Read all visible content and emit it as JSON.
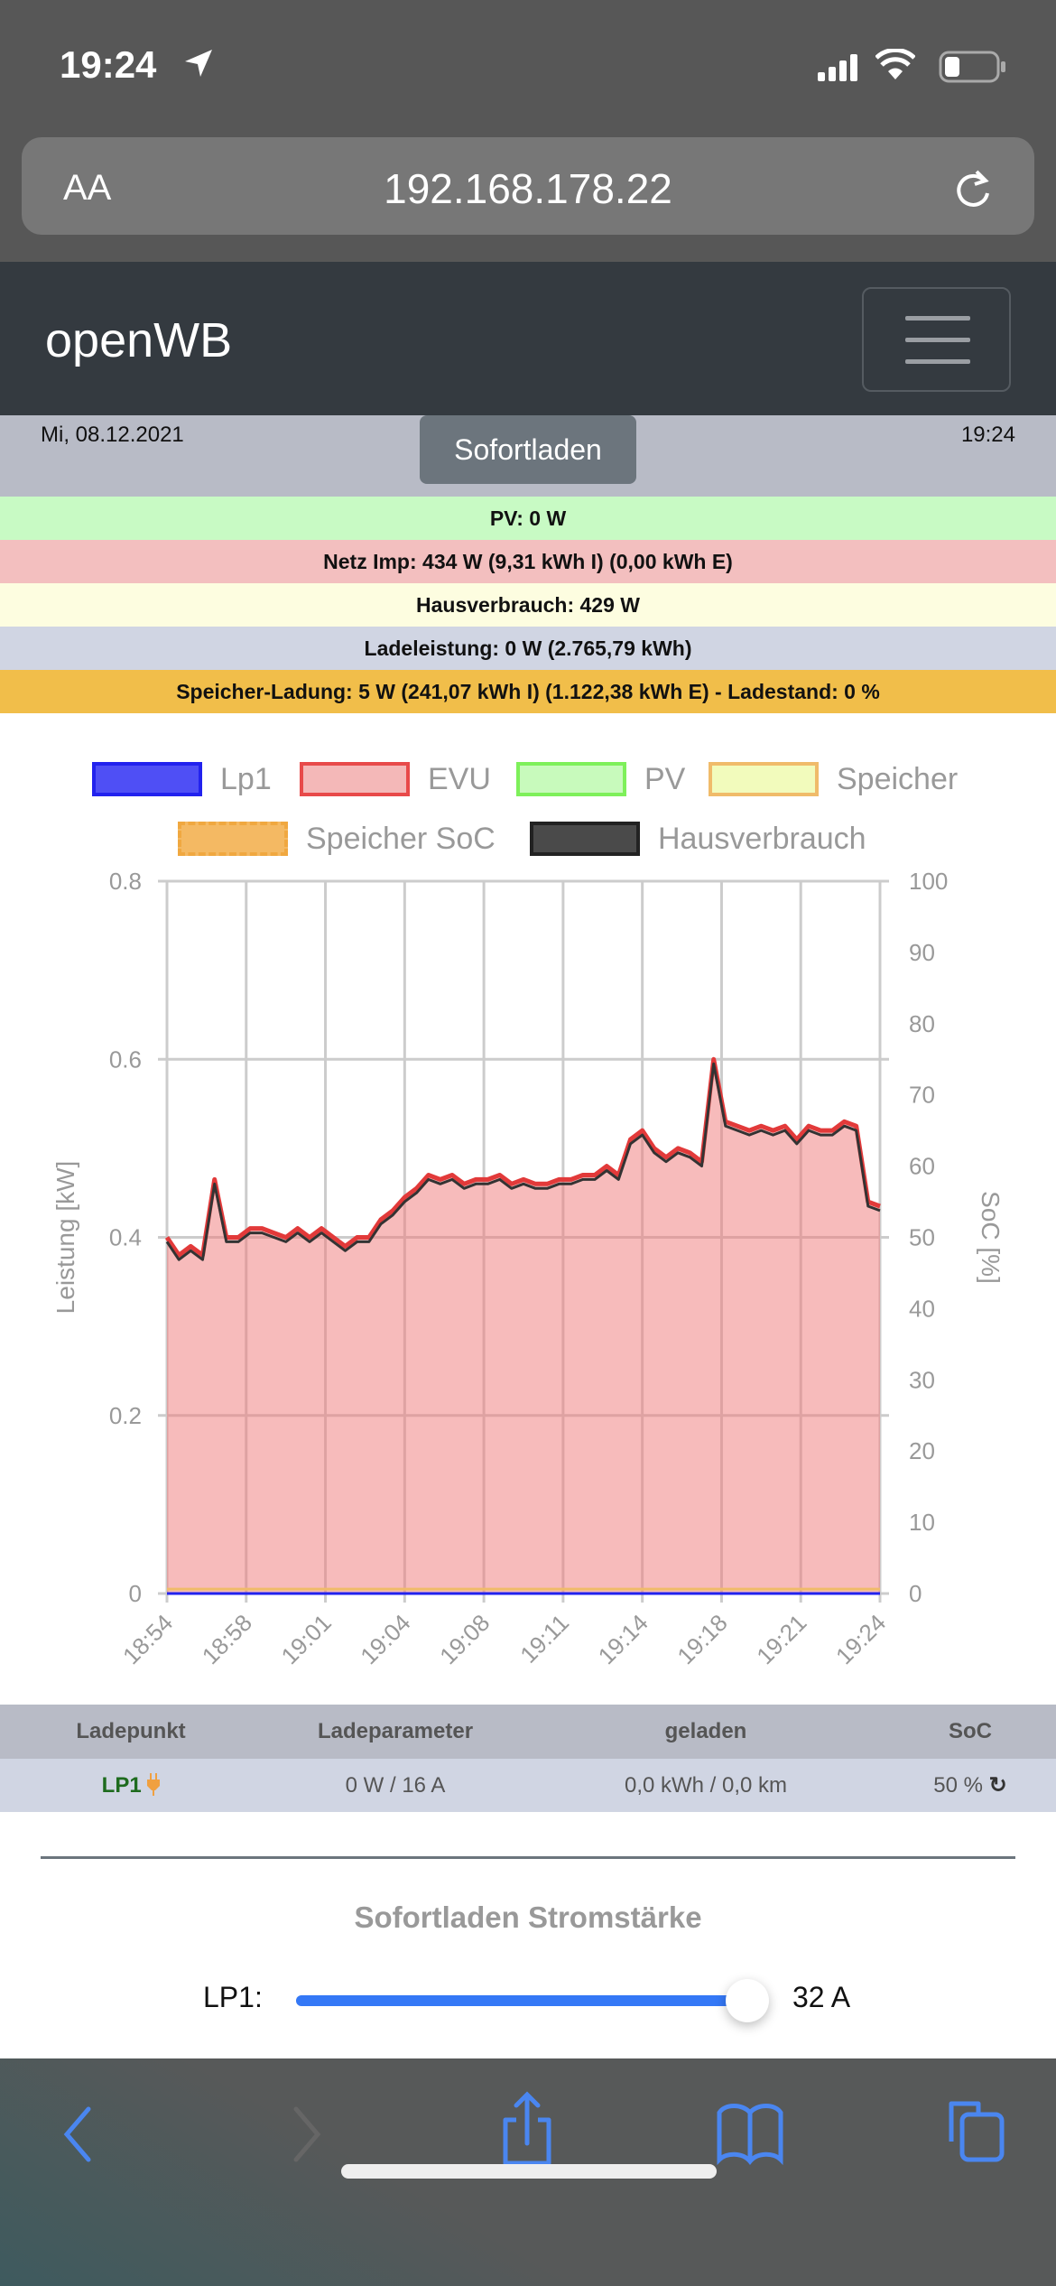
{
  "status_bar": {
    "time": "19:24",
    "icons": [
      "location-arrow-icon",
      "signal-icon",
      "wifi-icon",
      "battery-icon"
    ]
  },
  "browser": {
    "text_size_label": "AA",
    "url": "192.168.178.22",
    "reload_icon": "reload-icon",
    "toolbar_icons": [
      "back-icon",
      "forward-icon",
      "share-icon",
      "bookmarks-icon",
      "tabs-icon"
    ]
  },
  "navbar": {
    "brand": "openWB",
    "menu_icon": "hamburger-icon"
  },
  "header": {
    "date": "Mi, 08.12.2021",
    "mode_button": "Sofortladen",
    "time": "19:24"
  },
  "info": [
    {
      "text": "PV: 0 W",
      "color": "#c8fac4"
    },
    {
      "text": "Netz Imp: 434 W (9,31 kWh I) (0,00 kWh E)",
      "color": "#f3bfbf"
    },
    {
      "text": "Hausverbrauch: 429 W",
      "color": "#fdfde0"
    },
    {
      "text": "Ladeleistung: 0 W (2.765,79 kWh)",
      "color": "#d0d5e3"
    },
    {
      "text": "Speicher-Ladung: 5 W (241,07 kWh I) (1.122,38 kWh E) - Ladestand: 0 %",
      "color": "#f1be4a"
    }
  ],
  "chart_data": {
    "type": "area",
    "legend": [
      {
        "name": "Lp1",
        "fill": "#4f4ff5",
        "stroke": "#2222ee"
      },
      {
        "name": "EVU",
        "fill": "#f4b8b8",
        "stroke": "#e84a4a"
      },
      {
        "name": "PV",
        "fill": "#c8fabc",
        "stroke": "#7ef05a"
      },
      {
        "name": "Speicher",
        "fill": "#f2fbbc",
        "stroke": "#f0bb6a"
      },
      {
        "name": "Speicher SoC",
        "fill": "#f4b963",
        "stroke": "#f0a840",
        "dashed": true
      },
      {
        "name": "Hausverbrauch",
        "fill": "#4a4a4a",
        "stroke": "#222222"
      }
    ],
    "legend_position": "top",
    "ylabel": "Leistung [kW]",
    "ylim": [
      0,
      0.8
    ],
    "yticks": [
      "0",
      "0.2",
      "0.4",
      "0.6",
      "0.8"
    ],
    "y2label": "SoC [%]",
    "y2lim": [
      0,
      100
    ],
    "y2ticks": [
      "0",
      "10",
      "20",
      "30",
      "40",
      "50",
      "60",
      "70",
      "80",
      "90",
      "100"
    ],
    "xticks": [
      "18:54",
      "18:58",
      "19:01",
      "19:04",
      "19:08",
      "19:11",
      "19:14",
      "19:18",
      "19:21",
      "19:24"
    ],
    "xlim": [
      "18:54",
      "19:24"
    ],
    "grid": true,
    "minutes_after_1854": [
      0,
      0.5,
      1,
      1.5,
      2,
      2.5,
      3,
      3.5,
      4,
      4.5,
      5,
      5.5,
      6,
      6.5,
      7,
      7.5,
      8,
      8.5,
      9,
      9.5,
      10,
      10.5,
      11,
      11.5,
      12,
      12.5,
      13,
      13.5,
      14,
      14.5,
      15,
      15.5,
      16,
      16.5,
      17,
      17.5,
      18,
      18.5,
      19,
      19.5,
      20,
      20.5,
      21,
      21.5,
      22,
      22.5,
      23,
      23.5,
      24,
      24.5,
      25,
      25.5,
      26,
      26.5,
      27,
      27.5,
      28,
      28.5,
      29,
      29.5,
      30
    ],
    "series": [
      {
        "name": "EVU",
        "values": [
          0.4,
          0.38,
          0.39,
          0.38,
          0.465,
          0.4,
          0.4,
          0.41,
          0.41,
          0.405,
          0.4,
          0.41,
          0.4,
          0.41,
          0.4,
          0.39,
          0.4,
          0.4,
          0.42,
          0.43,
          0.445,
          0.455,
          0.47,
          0.465,
          0.47,
          0.46,
          0.465,
          0.465,
          0.47,
          0.46,
          0.465,
          0.46,
          0.46,
          0.465,
          0.465,
          0.47,
          0.47,
          0.48,
          0.47,
          0.51,
          0.52,
          0.5,
          0.49,
          0.5,
          0.495,
          0.485,
          0.6,
          0.53,
          0.525,
          0.52,
          0.525,
          0.52,
          0.525,
          0.51,
          0.525,
          0.52,
          0.52,
          0.53,
          0.525,
          0.44,
          0.435
        ]
      },
      {
        "name": "Hausverbrauch",
        "values": [
          0.395,
          0.375,
          0.385,
          0.375,
          0.46,
          0.395,
          0.395,
          0.405,
          0.405,
          0.4,
          0.395,
          0.405,
          0.395,
          0.405,
          0.395,
          0.385,
          0.395,
          0.395,
          0.415,
          0.425,
          0.44,
          0.45,
          0.465,
          0.46,
          0.465,
          0.455,
          0.46,
          0.46,
          0.465,
          0.455,
          0.46,
          0.455,
          0.455,
          0.46,
          0.46,
          0.465,
          0.465,
          0.475,
          0.465,
          0.505,
          0.515,
          0.495,
          0.485,
          0.495,
          0.49,
          0.48,
          0.595,
          0.525,
          0.52,
          0.515,
          0.52,
          0.515,
          0.52,
          0.505,
          0.52,
          0.515,
          0.515,
          0.525,
          0.52,
          0.435,
          0.43
        ]
      },
      {
        "name": "Speicher",
        "values": [
          0.005,
          0.005,
          0.005,
          0.005,
          0.005,
          0.005,
          0.005,
          0.005,
          0.005,
          0.005,
          0.005,
          0.005,
          0.005,
          0.005,
          0.005,
          0.005,
          0.005,
          0.005,
          0.005,
          0.005,
          0.005,
          0.005,
          0.005,
          0.005,
          0.005,
          0.005,
          0.005,
          0.005,
          0.005,
          0.005,
          0.005,
          0.005,
          0.005,
          0.005,
          0.005,
          0.005,
          0.005,
          0.005,
          0.005,
          0.005,
          0.005,
          0.005,
          0.005,
          0.005,
          0.005,
          0.005,
          0.005,
          0.005,
          0.005,
          0.005,
          0.005,
          0.005,
          0.005,
          0.005,
          0.005,
          0.005,
          0.005,
          0.005,
          0.005,
          0.005,
          0.005
        ]
      },
      {
        "name": "Lp1",
        "values": [
          0,
          0,
          0,
          0,
          0,
          0,
          0,
          0,
          0,
          0,
          0,
          0,
          0,
          0,
          0,
          0,
          0,
          0,
          0,
          0,
          0,
          0,
          0,
          0,
          0,
          0,
          0,
          0,
          0,
          0,
          0,
          0,
          0,
          0,
          0,
          0,
          0,
          0,
          0,
          0,
          0,
          0,
          0,
          0,
          0,
          0,
          0,
          0,
          0,
          0,
          0,
          0,
          0,
          0,
          0,
          0,
          0,
          0,
          0,
          0,
          0
        ]
      }
    ]
  },
  "table": {
    "headers": [
      "Ladepunkt",
      "Ladeparameter",
      "geladen",
      "SoC"
    ],
    "row": {
      "name": "LP1",
      "plug_icon": "plug-icon",
      "params": "0 W / 16 A",
      "charged": "0,0 kWh / 0,0 km",
      "soc": "50 %",
      "refresh_icon": "refresh-icon"
    }
  },
  "sofortladen": {
    "title": "Sofortladen Stromstärke",
    "label": "LP1:",
    "value_label": "32 A",
    "slider_fraction": 1.0,
    "accent": "#3478f6"
  }
}
